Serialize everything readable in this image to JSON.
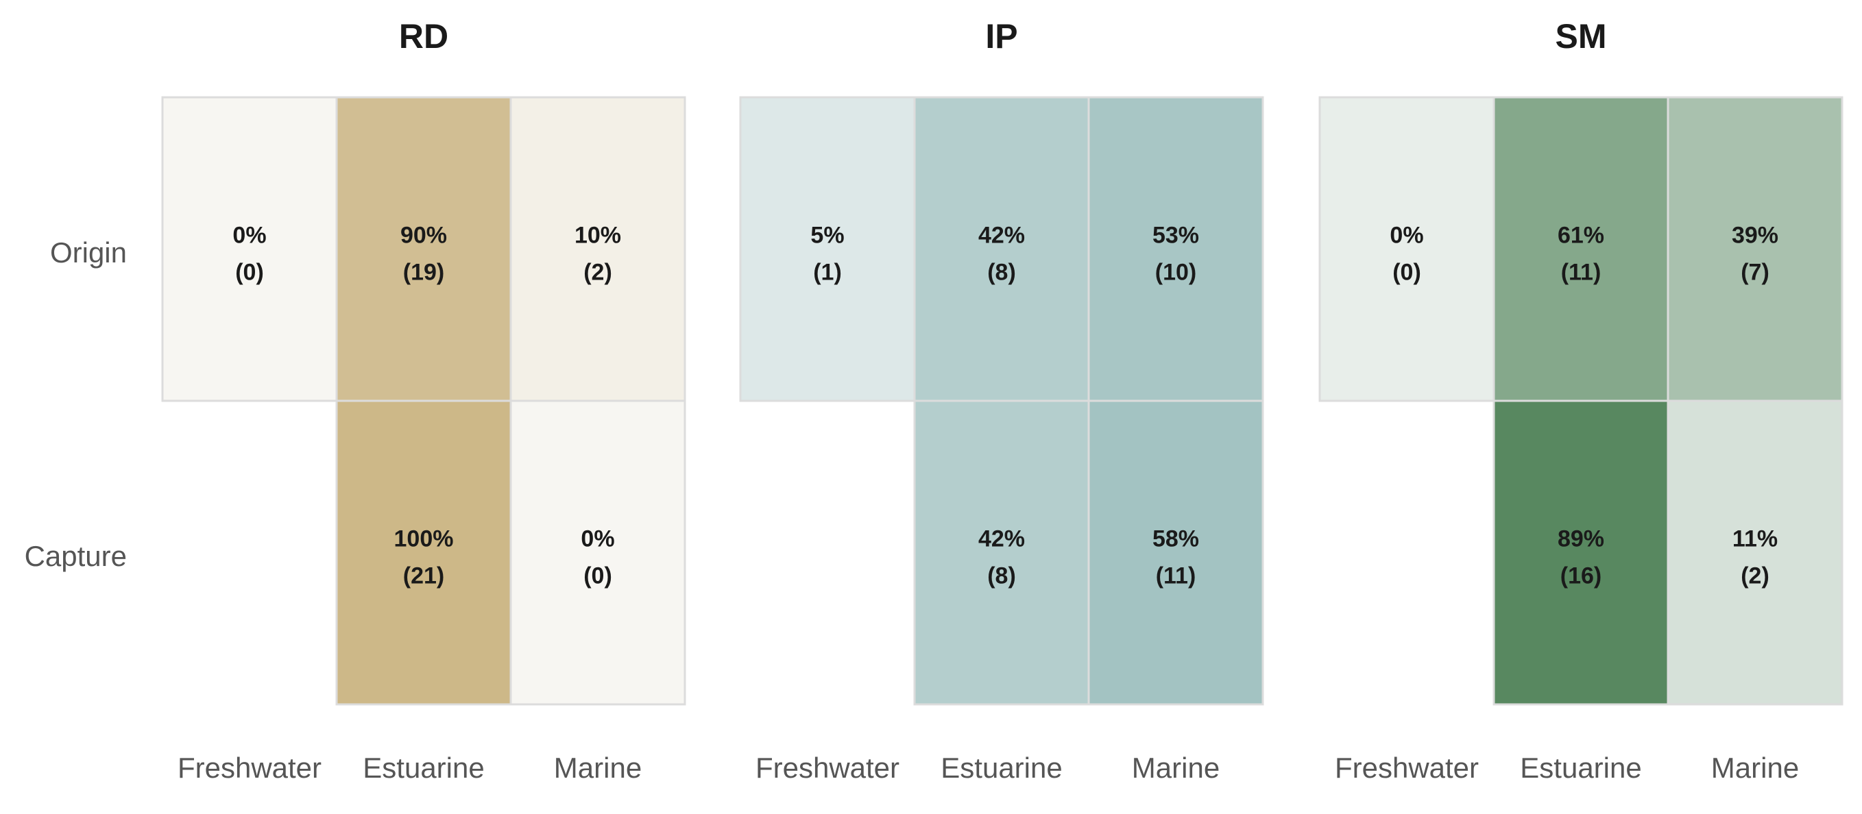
{
  "chart_data": {
    "type": "heatmap",
    "rows": [
      "Origin",
      "Capture"
    ],
    "columns": [
      "Freshwater",
      "Estuarine",
      "Marine"
    ],
    "panels": [
      {
        "title": "RD",
        "colors": {
          "high": "#cdb888",
          "low": "#f7f6f2"
        },
        "cells": [
          [
            {
              "percent": "0%",
              "count": "(0)",
              "value": 0
            },
            {
              "percent": "90%",
              "count": "(19)",
              "value": 90
            },
            {
              "percent": "10%",
              "count": "(2)",
              "value": 10
            }
          ],
          [
            null,
            {
              "percent": "100%",
              "count": "(21)",
              "value": 100
            },
            {
              "percent": "0%",
              "count": "(0)",
              "value": 0
            }
          ]
        ]
      },
      {
        "title": "IP",
        "colors": {
          "high": "#74a5a3",
          "low": "#e3ecec"
        },
        "cells": [
          [
            {
              "percent": "5%",
              "count": "(1)",
              "value": 5
            },
            {
              "percent": "42%",
              "count": "(8)",
              "value": 42
            },
            {
              "percent": "53%",
              "count": "(10)",
              "value": 53
            }
          ],
          [
            null,
            {
              "percent": "42%",
              "count": "(8)",
              "value": 42
            },
            {
              "percent": "58%",
              "count": "(11)",
              "value": 58
            }
          ]
        ]
      },
      {
        "title": "SM",
        "colors": {
          "high": "#467b4f",
          "low": "#e8eeea"
        },
        "cells": [
          [
            {
              "percent": "0%",
              "count": "(0)",
              "value": 0
            },
            {
              "percent": "61%",
              "count": "(11)",
              "value": 61
            },
            {
              "percent": "39%",
              "count": "(7)",
              "value": 39
            }
          ],
          [
            null,
            {
              "percent": "89%",
              "count": "(16)",
              "value": 89
            },
            {
              "percent": "11%",
              "count": "(2)",
              "value": 11
            }
          ]
        ]
      }
    ]
  }
}
